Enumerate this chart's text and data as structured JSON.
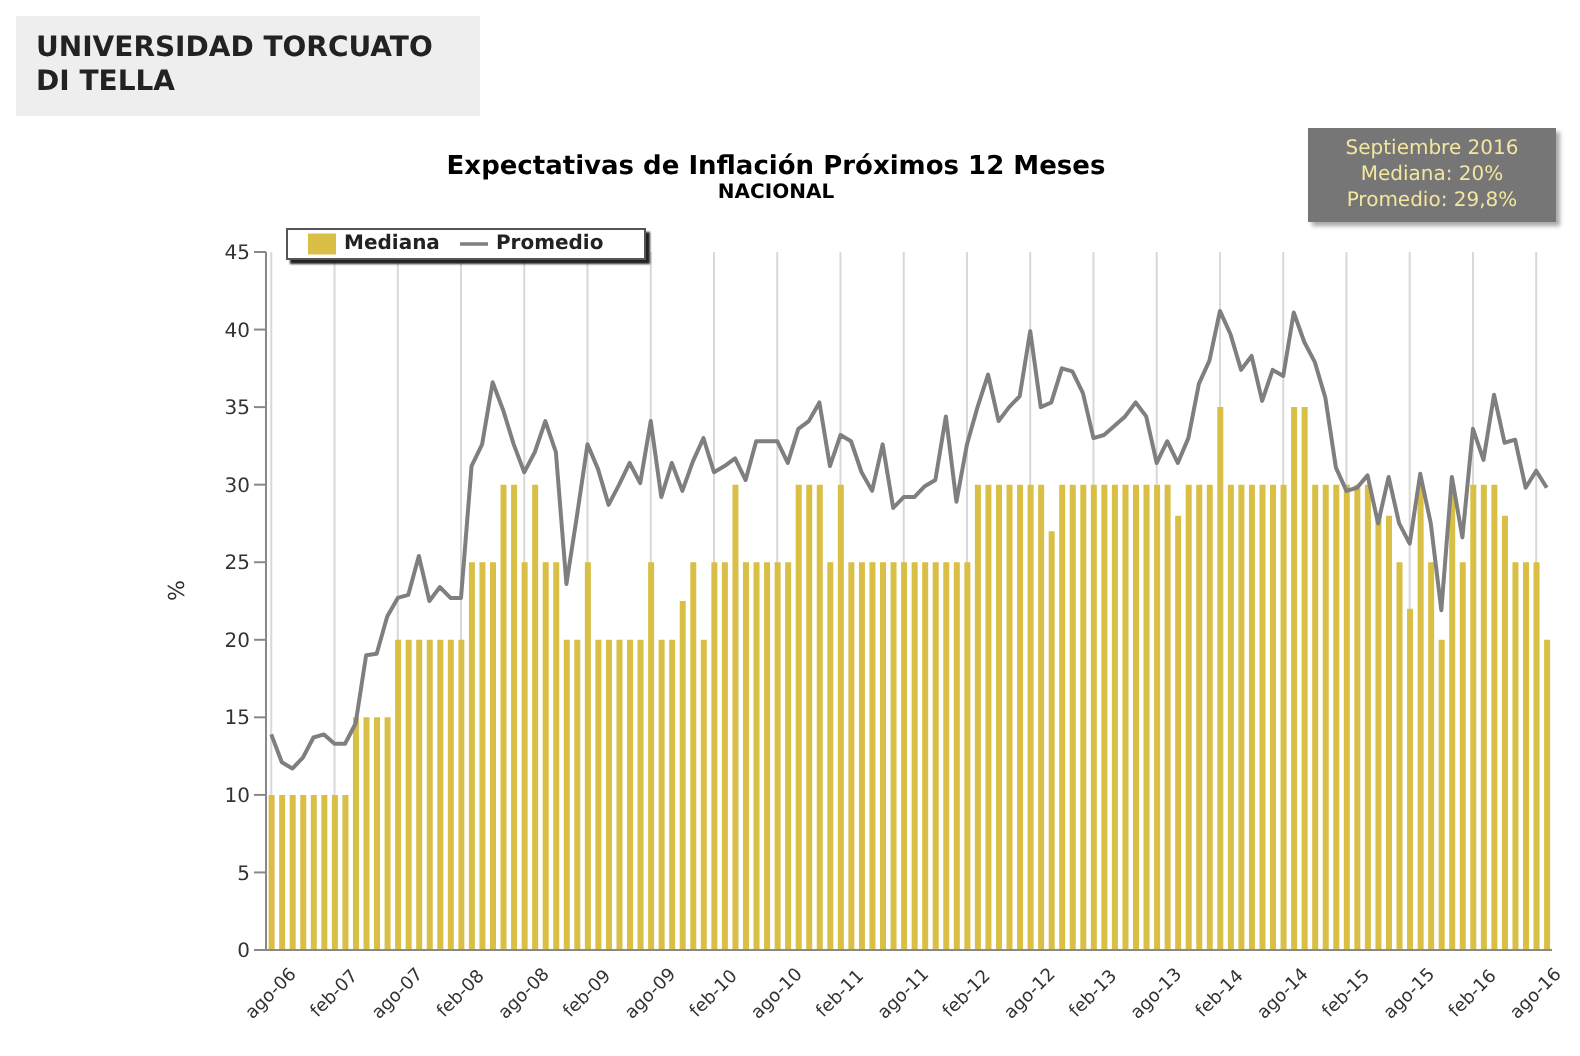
{
  "chart_data": {
    "type": "bar",
    "title": "Expectativas de Inflación Próximos 12 Meses",
    "subtitle": "NACIONAL",
    "ylabel": "%",
    "annotations": [
      "UNIVERSIDAD TORCUATO DI TELLA",
      "Septiembre 2016",
      "Mediana: 20%",
      "Promedio: 29,8%"
    ],
    "categories": [
      "ago-06",
      null,
      null,
      null,
      null,
      null,
      "feb-07",
      null,
      null,
      null,
      null,
      null,
      "ago-07",
      null,
      null,
      null,
      null,
      null,
      "feb-08",
      null,
      null,
      null,
      null,
      null,
      "ago-08",
      null,
      null,
      null,
      null,
      null,
      "feb-09",
      null,
      null,
      null,
      null,
      null,
      "ago-09",
      null,
      null,
      null,
      null,
      null,
      "feb-10",
      null,
      null,
      null,
      null,
      null,
      "ago-10",
      null,
      null,
      null,
      null,
      null,
      "feb-11",
      null,
      null,
      null,
      null,
      null,
      "ago-11",
      null,
      null,
      null,
      null,
      null,
      "feb-12",
      null,
      null,
      null,
      null,
      null,
      "ago-12",
      null,
      null,
      null,
      null,
      null,
      "feb-13",
      null,
      null,
      null,
      null,
      null,
      "ago-13",
      null,
      null,
      null,
      null,
      null,
      "feb-14",
      null,
      null,
      null,
      null,
      null,
      "ago-14",
      null,
      null,
      null,
      null,
      null,
      "feb-15",
      null,
      null,
      null,
      null,
      null,
      "ago-15",
      null,
      null,
      null,
      null,
      null,
      "feb-16",
      null,
      null,
      null,
      null,
      null,
      "ago-16",
      null
    ],
    "series": [
      {
        "name": "Mediana",
        "color": "#d9bf45",
        "values": [
          10,
          10,
          10,
          10,
          10,
          10,
          10,
          10,
          15,
          15,
          15,
          15,
          20,
          20,
          20,
          20,
          20,
          20,
          20,
          25,
          25,
          25,
          30,
          30,
          25,
          30,
          25,
          25,
          20,
          20,
          25,
          20,
          20,
          20,
          20,
          20,
          25,
          20,
          20,
          22.5,
          25,
          20,
          25,
          25,
          30,
          25,
          25,
          25,
          25,
          25,
          30,
          30,
          30,
          25,
          30,
          25,
          25,
          25,
          25,
          25,
          25,
          25,
          25,
          25,
          25,
          25,
          25,
          30,
          30,
          30,
          30,
          30,
          30,
          30,
          27,
          30,
          30,
          30,
          30,
          30,
          30,
          30,
          30,
          30,
          30,
          30,
          28,
          30,
          30,
          30,
          35,
          30,
          30,
          30,
          30,
          30,
          30,
          35,
          35,
          30,
          30,
          30,
          30,
          30,
          30,
          28,
          28,
          25,
          22,
          30,
          25,
          20,
          30,
          25,
          30,
          30,
          30,
          28,
          25,
          25,
          25,
          20
        ]
      },
      {
        "name": "Promedio",
        "type": "line",
        "color": "#7f7f7f",
        "values": [
          13.9,
          12.1,
          11.7,
          12.4,
          13.7,
          13.9,
          13.3,
          13.3,
          14.6,
          19,
          19.1,
          21.5,
          22.7,
          22.9,
          25.4,
          22.5,
          23.4,
          22.7,
          22.7,
          31.2,
          32.6,
          36.6,
          34.8,
          32.6,
          30.8,
          32.1,
          34.1,
          32.1,
          23.6,
          28,
          32.6,
          31,
          28.7,
          30,
          31.4,
          30.1,
          34.1,
          29.2,
          31.4,
          29.6,
          31.5,
          33,
          30.8,
          31.2,
          31.7,
          30.3,
          32.8,
          32.8,
          32.8,
          31.4,
          33.6,
          34.1,
          35.3,
          31.2,
          33.2,
          32.8,
          30.8,
          29.6,
          32.6,
          28.5,
          29.2,
          29.2,
          29.9,
          30.3,
          34.4,
          28.9,
          32.6,
          35,
          37.1,
          34.1,
          35,
          35.7,
          39.9,
          35,
          35.3,
          37.5,
          37.3,
          35.9,
          33,
          33.2,
          33.8,
          34.4,
          35.3,
          34.4,
          31.4,
          32.8,
          31.4,
          33,
          36.5,
          38,
          41.2,
          39.7,
          37.4,
          38.3,
          35.4,
          37.4,
          37,
          41.1,
          39.2,
          37.9,
          35.6,
          31.1,
          29.6,
          29.8,
          30.6,
          27.5,
          30.5,
          27.5,
          26.2,
          30.7,
          27.5,
          21.9,
          30.5,
          26.6,
          33.6,
          31.6,
          35.8,
          32.7,
          32.9,
          29.8,
          30.9,
          29.8
        ]
      }
    ],
    "ylim": [
      0,
      45
    ],
    "yticks": [
      0,
      5,
      10,
      15,
      20,
      25,
      30,
      35,
      40,
      45
    ],
    "grid": "x",
    "legend": "top left"
  }
}
